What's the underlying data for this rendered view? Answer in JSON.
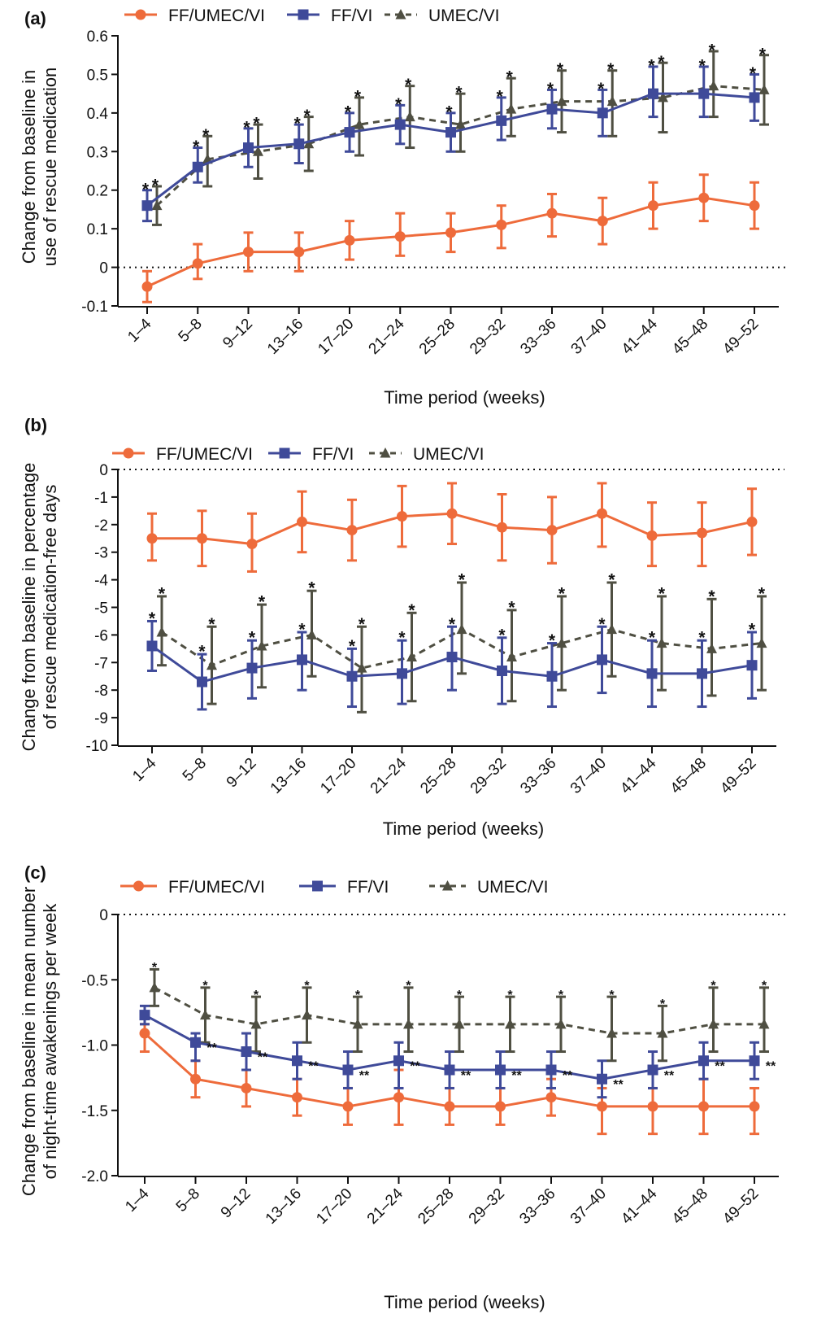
{
  "colors": {
    "ff_umec_vi": "#EE6B3B",
    "ff_vi": "#3F4A99",
    "umec_vi": "#4F4F42"
  },
  "chart_data": [
    {
      "type": "line",
      "panel_label": "(a)",
      "xlabel": "Time period (weeks)",
      "ylabel_lines": [
        "Change from baseline in",
        "use of rescue medication"
      ],
      "categories": [
        "1–4",
        "5–8",
        "9–12",
        "13–16",
        "17–20",
        "21–24",
        "25–28",
        "29–32",
        "33–36",
        "37–40",
        "41–44",
        "45–48",
        "49–52"
      ],
      "ylim": [
        -0.1,
        0.6
      ],
      "yticks": [
        -0.1,
        0,
        0.1,
        0.2,
        0.3,
        0.4,
        0.5,
        0.6
      ],
      "ytick_labels": [
        "-0.1",
        "0",
        "0.1",
        "0.2",
        "0.3",
        "0.4",
        "0.5",
        "0.6"
      ],
      "reference_line": 0,
      "legend": {
        "position": "top-left",
        "labels": [
          "FF/UMEC/VI",
          "FF/VI",
          "UMEC/VI"
        ]
      },
      "series": [
        {
          "name": "FF/UMEC/VI",
          "marker": "circle",
          "line": "solid",
          "values": [
            -0.05,
            0.01,
            0.04,
            0.04,
            0.07,
            0.08,
            0.09,
            0.11,
            0.14,
            0.12,
            0.16,
            0.18,
            0.16
          ],
          "err_low": [
            -0.09,
            -0.03,
            -0.01,
            -0.01,
            0.02,
            0.03,
            0.04,
            0.05,
            0.08,
            0.06,
            0.1,
            0.12,
            0.1
          ],
          "err_high": [
            -0.01,
            0.06,
            0.09,
            0.09,
            0.12,
            0.14,
            0.14,
            0.16,
            0.19,
            0.18,
            0.22,
            0.24,
            0.22
          ]
        },
        {
          "name": "FF/VI",
          "marker": "square",
          "line": "solid",
          "values": [
            0.16,
            0.26,
            0.31,
            0.32,
            0.35,
            0.37,
            0.35,
            0.38,
            0.41,
            0.4,
            0.45,
            0.45,
            0.44
          ],
          "err_low": [
            0.12,
            0.22,
            0.26,
            0.27,
            0.3,
            0.32,
            0.3,
            0.33,
            0.36,
            0.34,
            0.39,
            0.39,
            0.38
          ],
          "err_high": [
            0.2,
            0.31,
            0.36,
            0.37,
            0.4,
            0.42,
            0.4,
            0.44,
            0.46,
            0.46,
            0.52,
            0.52,
            0.5
          ],
          "markers": [
            "*",
            "*",
            "*",
            "*",
            "*",
            "*",
            "*",
            "*",
            "*",
            "*",
            "*",
            "*",
            "*"
          ]
        },
        {
          "name": "UMEC/VI",
          "marker": "triangle",
          "line": "dashed",
          "values": [
            0.16,
            0.28,
            0.3,
            0.32,
            0.37,
            0.39,
            0.37,
            0.41,
            0.43,
            0.43,
            0.44,
            0.47,
            0.46
          ],
          "err_low": [
            0.11,
            0.21,
            0.23,
            0.25,
            0.29,
            0.31,
            0.3,
            0.34,
            0.35,
            0.34,
            0.35,
            0.39,
            0.37
          ],
          "err_high": [
            0.21,
            0.34,
            0.37,
            0.39,
            0.44,
            0.47,
            0.45,
            0.49,
            0.51,
            0.51,
            0.53,
            0.56,
            0.55
          ],
          "markers": [
            "*",
            "*",
            "*",
            "*",
            "*",
            "*",
            "*",
            "*",
            "*",
            "*",
            "*",
            "*",
            "*"
          ]
        }
      ]
    },
    {
      "type": "line",
      "panel_label": "(b)",
      "xlabel": "Time period (weeks)",
      "ylabel_lines": [
        "Change from baseline in percentage",
        "of rescue medication-free days"
      ],
      "categories": [
        "1–4",
        "5–8",
        "9–12",
        "13–16",
        "17–20",
        "21–24",
        "25–28",
        "29–32",
        "33–36",
        "37–40",
        "41–44",
        "45–48",
        "49–52"
      ],
      "ylim": [
        -10,
        0
      ],
      "yticks": [
        -10,
        -9,
        -8,
        -7,
        -6,
        -5,
        -4,
        -3,
        -2,
        -1,
        0
      ],
      "ytick_labels": [
        "-10",
        "-9",
        "-8",
        "-7",
        "-6",
        "-5",
        "-4",
        "-3",
        "-2",
        "-1",
        "0"
      ],
      "reference_line": 0,
      "legend": {
        "position": "top-left",
        "labels": [
          "FF/UMEC/VI",
          "FF/VI",
          "UMEC/VI"
        ]
      },
      "series": [
        {
          "name": "FF/UMEC/VI",
          "marker": "circle",
          "line": "solid",
          "values": [
            -2.5,
            -2.5,
            -2.7,
            -1.9,
            -2.2,
            -1.7,
            -1.6,
            -2.1,
            -2.2,
            -1.6,
            -2.4,
            -2.3,
            -1.9
          ],
          "err_low": [
            -3.3,
            -3.5,
            -3.7,
            -3.0,
            -3.3,
            -2.8,
            -2.7,
            -3.3,
            -3.4,
            -2.8,
            -3.5,
            -3.5,
            -3.1
          ],
          "err_high": [
            -1.6,
            -1.5,
            -1.6,
            -0.8,
            -1.1,
            -0.6,
            -0.5,
            -0.9,
            -1.0,
            -0.5,
            -1.2,
            -1.2,
            -0.7
          ]
        },
        {
          "name": "FF/VI",
          "marker": "square",
          "line": "solid",
          "values": [
            -6.4,
            -7.7,
            -7.2,
            -6.9,
            -7.5,
            -7.4,
            -6.8,
            -7.3,
            -7.5,
            -6.9,
            -7.4,
            -7.4,
            -7.1
          ],
          "err_low": [
            -7.3,
            -8.7,
            -8.3,
            -8.0,
            -8.6,
            -8.5,
            -8.0,
            -8.5,
            -8.6,
            -8.1,
            -8.6,
            -8.6,
            -8.3
          ],
          "err_high": [
            -5.5,
            -6.7,
            -6.2,
            -5.9,
            -6.5,
            -6.2,
            -5.7,
            -6.1,
            -6.3,
            -5.7,
            -6.2,
            -6.2,
            -5.9
          ],
          "markers": [
            "*",
            "*",
            "*",
            "*",
            "*",
            "*",
            "*",
            "*",
            "*",
            "*",
            "*",
            "*",
            "*"
          ]
        },
        {
          "name": "UMEC/VI",
          "marker": "triangle",
          "line": "dashed",
          "values": [
            -5.9,
            -7.1,
            -6.4,
            -6.0,
            -7.2,
            -6.8,
            -5.8,
            -6.8,
            -6.3,
            -5.8,
            -6.3,
            -6.5,
            -6.3
          ],
          "err_low": [
            -7.1,
            -8.5,
            -7.9,
            -7.5,
            -8.8,
            -8.4,
            -7.4,
            -8.4,
            -8.0,
            -7.5,
            -8.0,
            -8.2,
            -8.0
          ],
          "err_high": [
            -4.6,
            -5.7,
            -4.9,
            -4.4,
            -5.7,
            -5.2,
            -4.1,
            -5.1,
            -4.6,
            -4.1,
            -4.6,
            -4.7,
            -4.6
          ],
          "markers": [
            "*",
            "*",
            "*",
            "*",
            "*",
            "*",
            "*",
            "*",
            "*",
            "*",
            "*",
            "*",
            "*"
          ]
        }
      ]
    },
    {
      "type": "line",
      "panel_label": "(c)",
      "xlabel": "Time period (weeks)",
      "ylabel_lines": [
        "Change from baseline in mean number",
        "of night-time awakenings per week"
      ],
      "categories": [
        "1–4",
        "5–8",
        "9–12",
        "13–16",
        "17–20",
        "21–24",
        "25–28",
        "29–32",
        "33–36",
        "37–40",
        "41–44",
        "45–48",
        "49–52"
      ],
      "ylim": [
        -2.0,
        0
      ],
      "yticks": [
        -2.0,
        -1.5,
        -1.0,
        -0.5,
        0
      ],
      "ytick_labels": [
        "-2.0",
        "-1.5",
        "-1.0",
        "-0.5",
        "0"
      ],
      "reference_line": 0,
      "legend": {
        "position": "top-left",
        "labels": [
          "FF/UMEC/VI",
          "FF/VI",
          "UMEC/VI"
        ]
      },
      "series": [
        {
          "name": "FF/UMEC/VI",
          "marker": "circle",
          "line": "solid",
          "values": [
            -0.91,
            -1.26,
            -1.33,
            -1.4,
            -1.47,
            -1.4,
            -1.47,
            -1.47,
            -1.4,
            -1.47,
            -1.47,
            -1.47,
            -1.47
          ],
          "err_low": [
            -1.05,
            -1.4,
            -1.47,
            -1.54,
            -1.61,
            -1.61,
            -1.61,
            -1.61,
            -1.54,
            -1.68,
            -1.68,
            -1.68,
            -1.68
          ],
          "err_high": [
            -0.84,
            -1.12,
            -1.19,
            -1.26,
            -1.33,
            -1.19,
            -1.33,
            -1.33,
            -1.26,
            -1.33,
            -1.33,
            -1.26,
            -1.33
          ]
        },
        {
          "name": "FF/VI",
          "marker": "square",
          "line": "solid",
          "values": [
            -0.77,
            -0.98,
            -1.05,
            -1.12,
            -1.19,
            -1.12,
            -1.19,
            -1.19,
            -1.19,
            -1.26,
            -1.19,
            -1.12,
            -1.12
          ],
          "err_low": [
            -0.84,
            -1.12,
            -1.19,
            -1.26,
            -1.33,
            -1.33,
            -1.33,
            -1.33,
            -1.33,
            -1.4,
            -1.33,
            -1.26,
            -1.26
          ],
          "err_high": [
            -0.7,
            -0.91,
            -0.91,
            -0.98,
            -1.05,
            -0.98,
            -1.05,
            -1.05,
            -1.05,
            -1.12,
            -1.05,
            -0.98,
            -0.98
          ],
          "markers": [
            "",
            "**",
            "**",
            "**",
            "**",
            "**",
            "**",
            "**",
            "**",
            "**",
            "**",
            "**",
            "**"
          ]
        },
        {
          "name": "UMEC/VI",
          "marker": "triangle",
          "line": "dashed",
          "values": [
            -0.56,
            -0.77,
            -0.84,
            -0.77,
            -0.84,
            -0.84,
            -0.84,
            -0.84,
            -0.84,
            -0.91,
            -0.91,
            -0.84,
            -0.84
          ],
          "err_low": [
            -0.7,
            -0.98,
            -1.05,
            -0.98,
            -1.05,
            -1.05,
            -1.05,
            -1.05,
            -1.05,
            -1.12,
            -1.12,
            -1.05,
            -1.05
          ],
          "err_high": [
            -0.42,
            -0.56,
            -0.63,
            -0.56,
            -0.63,
            -0.56,
            -0.63,
            -0.63,
            -0.63,
            -0.63,
            -0.7,
            -0.56,
            -0.56
          ],
          "markers": [
            "*",
            "*",
            "*",
            "*",
            "*",
            "*",
            "*",
            "*",
            "*",
            "*",
            "*",
            "*",
            "*"
          ]
        }
      ]
    }
  ]
}
